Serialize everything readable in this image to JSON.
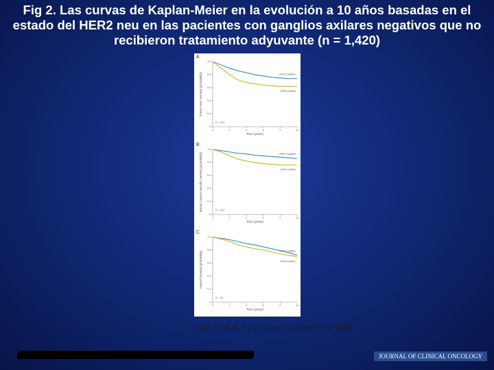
{
  "header": {
    "title": "Fig 2. Las curvas de Kaplan-Meier en la evolución a 10 años  basadas en el estado del HER2 neu en las pacientes con ganglios axilares negativos que  no recibieron tratamiento adyuvante  (n = 1,420)"
  },
  "chart_data": [
    {
      "type": "line",
      "panel": "A",
      "y_label": "Tumor-Free Survival (probability)",
      "x_label": "Time (years)",
      "annotation": "P = .001",
      "x": [
        0,
        1,
        2,
        3,
        4,
        5,
        6,
        7,
        8,
        9,
        10
      ],
      "xlim": [
        0,
        10
      ],
      "xticks": [
        0,
        2,
        4,
        6,
        8,
        10
      ],
      "ylim": [
        0,
        1
      ],
      "yticks": [
        0,
        0.2,
        0.4,
        0.6,
        0.8,
        {
          "value": 1,
          "label": "1.0"
        }
      ],
      "series": [
        {
          "name": "HER2-negative",
          "color": "#3a8fd8",
          "values": [
            1.0,
            0.95,
            0.9,
            0.86,
            0.83,
            0.8,
            0.78,
            0.76,
            0.75,
            0.74,
            0.74
          ]
        },
        {
          "name": "HER2-positive",
          "color": "#d4b82a",
          "values": [
            1.0,
            0.9,
            0.8,
            0.72,
            0.68,
            0.66,
            0.64,
            0.63,
            0.62,
            0.62,
            0.62
          ]
        }
      ]
    },
    {
      "type": "line",
      "panel": "B",
      "y_label": "Breast Cancer-Specific Survival (probability)",
      "x_label": "Time (years)",
      "annotation": "P = .001",
      "x": [
        0,
        1,
        2,
        3,
        4,
        5,
        6,
        7,
        8,
        9,
        10
      ],
      "xlim": [
        0,
        10
      ],
      "xticks": [
        0,
        2,
        4,
        6,
        8,
        10
      ],
      "ylim": [
        0,
        1
      ],
      "yticks": [
        0,
        0.2,
        0.4,
        0.6,
        0.8,
        {
          "value": 1,
          "label": "1.0"
        }
      ],
      "series": [
        {
          "name": "HER2-negative",
          "color": "#3a8fd8",
          "values": [
            1.0,
            0.98,
            0.96,
            0.94,
            0.93,
            0.91,
            0.9,
            0.89,
            0.88,
            0.87,
            0.86
          ]
        },
        {
          "name": "HER2-positive",
          "color": "#d4b82a",
          "values": [
            1.0,
            0.96,
            0.9,
            0.85,
            0.82,
            0.8,
            0.78,
            0.77,
            0.76,
            0.76,
            0.76
          ]
        }
      ]
    },
    {
      "type": "line",
      "panel": "C",
      "y_label": "Overall Survival (probability)",
      "x_label": "Time (years)",
      "annotation": "P = .03",
      "x": [
        0,
        1,
        2,
        3,
        4,
        5,
        6,
        7,
        8,
        9,
        10
      ],
      "xlim": [
        0,
        10
      ],
      "xticks": [
        0,
        2,
        4,
        6,
        8,
        10
      ],
      "ylim": [
        0,
        1
      ],
      "yticks": [
        0,
        0.2,
        0.4,
        0.6,
        0.8,
        {
          "value": 1,
          "label": "1.0"
        }
      ],
      "series": [
        {
          "name": "HER2-negative",
          "color": "#3a8fd8",
          "values": [
            1.0,
            0.98,
            0.96,
            0.93,
            0.9,
            0.88,
            0.85,
            0.82,
            0.79,
            0.76,
            0.72
          ]
        },
        {
          "name": "HER2-positive",
          "color": "#d4b82a",
          "values": [
            1.0,
            0.97,
            0.93,
            0.88,
            0.85,
            0.82,
            0.8,
            0.77,
            0.74,
            0.72,
            0.7
          ]
        }
      ]
    }
  ],
  "citation": "Chia, S. et al. J Clin Oncol; 26:5697-5704 2008",
  "footer": {
    "journal": "JOURNAL OF CLINICAL ONCOLOGY"
  }
}
